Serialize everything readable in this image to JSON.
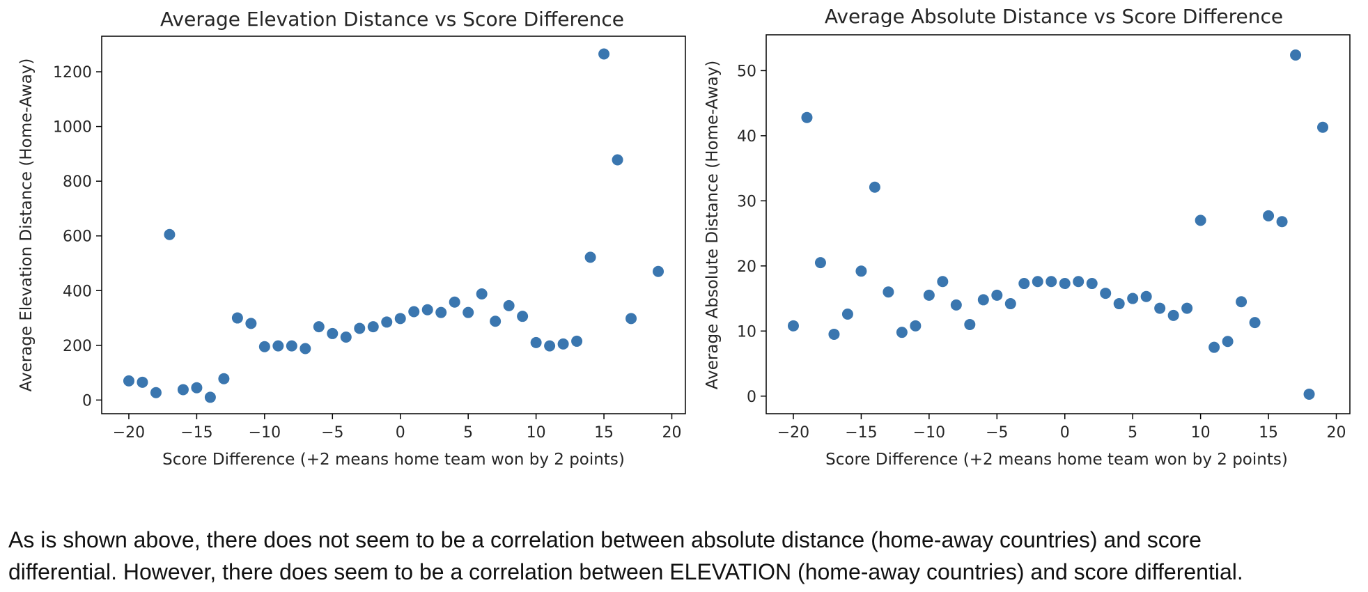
{
  "chart_data": [
    {
      "type": "scatter",
      "title": "Average Elevation Distance vs Score Difference",
      "xlabel": "Score Difference (+2 means home team won by 2 points)",
      "ylabel": "Average Elevation Distance (Home-Away)",
      "xlim": [
        -22,
        21
      ],
      "ylim": [
        -50,
        1330
      ],
      "xticks": [
        -20,
        -15,
        -10,
        -5,
        0,
        5,
        10,
        15,
        20
      ],
      "yticks": [
        0,
        200,
        400,
        600,
        800,
        1000,
        1200
      ],
      "grid": false,
      "color": "#3a76af",
      "x": [
        -20,
        -19,
        -18,
        -17,
        -16,
        -15,
        -14,
        -13,
        -12,
        -11,
        -10,
        -9,
        -8,
        -7,
        -6,
        -5,
        -4,
        -3,
        -2,
        -1,
        0,
        1,
        2,
        3,
        4,
        5,
        6,
        7,
        8,
        9,
        10,
        11,
        12,
        13,
        14,
        15,
        16,
        17,
        19
      ],
      "y": [
        70,
        65,
        27,
        605,
        38,
        45,
        10,
        78,
        300,
        280,
        195,
        198,
        198,
        188,
        268,
        243,
        230,
        262,
        268,
        285,
        298,
        323,
        330,
        320,
        358,
        320,
        388,
        288,
        345,
        306,
        210,
        198,
        205,
        215,
        522,
        1265,
        878,
        298,
        470
      ]
    },
    {
      "type": "scatter",
      "title": "Average Absolute Distance vs Score Difference",
      "xlabel": "Score Difference (+2 means home team won by 2 points)",
      "ylabel": "Average Absolute Distance (Home-Away)",
      "xlim": [
        -22,
        21
      ],
      "ylim": [
        -2.7,
        55.5
      ],
      "xticks": [
        -20,
        -15,
        -10,
        -5,
        0,
        5,
        10,
        15,
        20
      ],
      "yticks": [
        0,
        10,
        20,
        30,
        40,
        50
      ],
      "grid": false,
      "color": "#3a76af",
      "x": [
        -20,
        -19,
        -18,
        -17,
        -16,
        -15,
        -14,
        -13,
        -12,
        -11,
        -10,
        -9,
        -8,
        -7,
        -6,
        -5,
        -4,
        -3,
        -2,
        -1,
        0,
        1,
        2,
        3,
        4,
        5,
        6,
        7,
        8,
        9,
        10,
        11,
        12,
        13,
        14,
        15,
        16,
        17,
        18,
        19
      ],
      "y": [
        10.8,
        42.8,
        20.5,
        9.5,
        12.6,
        19.2,
        32.1,
        16.0,
        9.8,
        10.8,
        15.5,
        17.6,
        14.0,
        11.0,
        14.8,
        15.5,
        14.2,
        17.3,
        17.6,
        17.6,
        17.3,
        17.6,
        17.3,
        15.8,
        14.2,
        15.0,
        15.3,
        13.5,
        12.4,
        13.5,
        27.0,
        7.5,
        8.4,
        14.5,
        11.3,
        27.7,
        26.8,
        52.4,
        0.3,
        41.3
      ]
    }
  ],
  "caption": {
    "line1": "As is shown above, there does not seem to be a correlation between absolute distance (home-away countries) and score",
    "line2": "differential. However, there does seem to be a correlation between ELEVATION (home-away countries) and score differential."
  }
}
